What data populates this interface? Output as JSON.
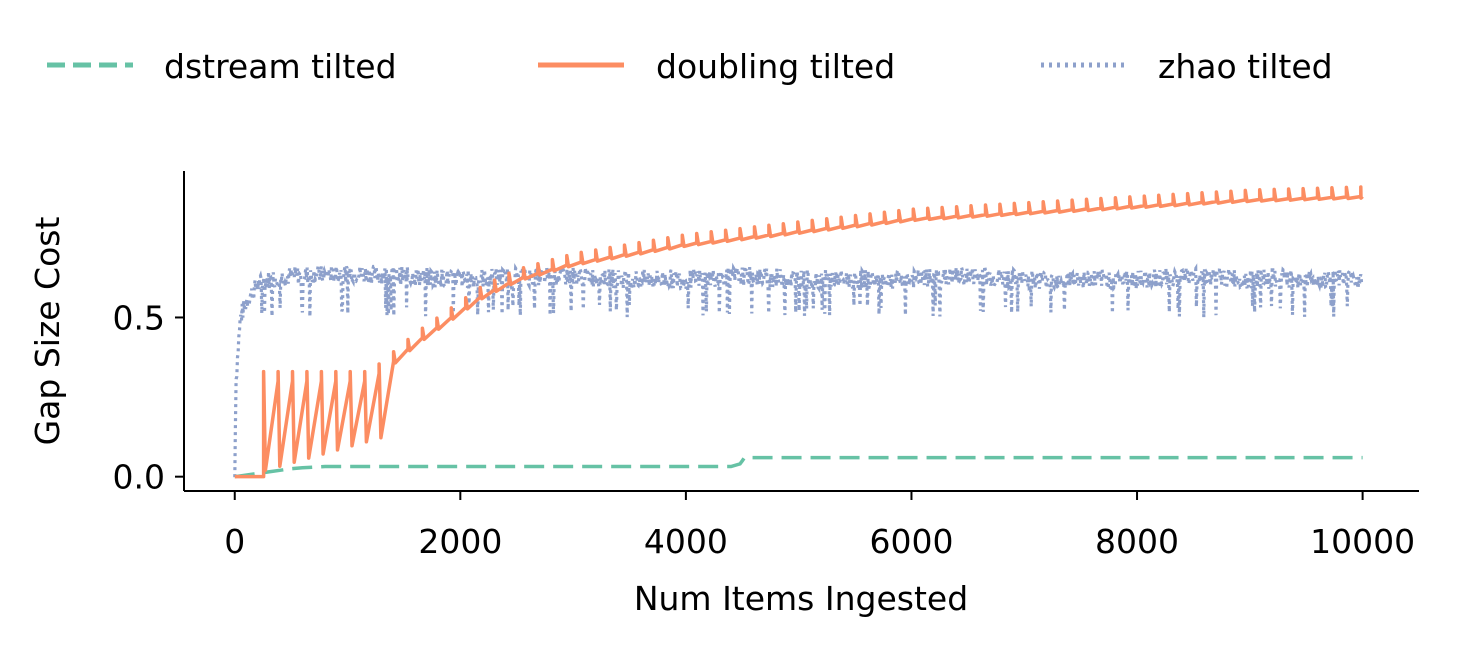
{
  "chart_data": {
    "type": "line",
    "title": "",
    "xlabel": "Num Items Ingested",
    "ylabel": "Gap Size Cost",
    "xlim": [
      -450,
      10500
    ],
    "ylim": [
      -0.045,
      0.96
    ],
    "x_ticks": [
      0,
      2000,
      4000,
      6000,
      8000,
      10000
    ],
    "x_tick_labels": [
      "0",
      "2000",
      "4000",
      "6000",
      "8000",
      "10000"
    ],
    "y_ticks": [
      0.0,
      0.5
    ],
    "y_tick_labels": [
      "0.0",
      "0.5"
    ],
    "grid": false,
    "legend_position": "top",
    "series": [
      {
        "name": "dstream tilted",
        "color": "#66c2a5",
        "style": "dashed",
        "x": [
          0,
          100,
          200,
          300,
          400,
          500,
          600,
          700,
          800,
          1000,
          1500,
          2000,
          2500,
          3000,
          3500,
          4000,
          4300,
          4400,
          4480,
          4500,
          4520,
          5000,
          5500,
          6000,
          7000,
          8000,
          9000,
          10000
        ],
        "y": [
          0.0,
          0.005,
          0.01,
          0.015,
          0.02,
          0.025,
          0.028,
          0.03,
          0.032,
          0.032,
          0.032,
          0.032,
          0.032,
          0.032,
          0.032,
          0.032,
          0.032,
          0.032,
          0.04,
          0.05,
          0.06,
          0.06,
          0.06,
          0.06,
          0.06,
          0.06,
          0.06,
          0.06
        ]
      },
      {
        "name": "doubling tilted",
        "color": "#fc8d62",
        "style": "solid",
        "sawtooth_x": [
          0,
          256,
          384,
          512,
          640,
          768,
          896,
          1024,
          1152,
          1280,
          1408,
          1536,
          1664,
          1792,
          1920,
          2048,
          2176,
          2304,
          2432,
          2560,
          2688,
          2816,
          2944,
          3072,
          3200,
          3328,
          3456,
          3584,
          3712,
          3840,
          3968,
          4096,
          4224,
          4352,
          4480,
          4608,
          4736,
          4864,
          4992,
          5120,
          5248,
          5376,
          5504,
          5632,
          5760,
          5888,
          6016,
          6144,
          6272,
          6400,
          6528,
          6656,
          6784,
          6912,
          7040,
          7168,
          7296,
          7424,
          7552,
          7680,
          7808,
          7936,
          8064,
          8192,
          8320,
          8448,
          8576,
          8704,
          8832,
          8960,
          9088,
          9216,
          9344,
          9472,
          9600,
          9728,
          9856,
          9984
        ],
        "x": [
          0,
          256,
          1000,
          1200,
          1400,
          1600,
          1800,
          2000,
          2200,
          2500,
          2800,
          3000,
          3500,
          4000,
          4500,
          5000,
          5500,
          6000,
          6500,
          7000,
          7500,
          8000,
          8500,
          9000,
          9500,
          10000
        ],
        "y": [
          0.0,
          0.33,
          0.33,
          0.33,
          0.39,
          0.45,
          0.5,
          0.55,
          0.6,
          0.65,
          0.68,
          0.7,
          0.73,
          0.76,
          0.78,
          0.8,
          0.82,
          0.84,
          0.85,
          0.86,
          0.87,
          0.88,
          0.89,
          0.9,
          0.905,
          0.91
        ]
      },
      {
        "name": "zhao tilted",
        "color": "#8da0cb",
        "style": "dotted",
        "x": [
          0,
          10,
          50,
          100,
          200,
          300,
          500,
          1000,
          1500,
          2000,
          2500,
          3000,
          3500,
          4000,
          4500,
          5000,
          5500,
          6000,
          6500,
          7000,
          7500,
          8000,
          8500,
          9000,
          9500,
          10000
        ],
        "y": [
          0.0,
          0.3,
          0.5,
          0.55,
          0.6,
          0.62,
          0.63,
          0.64,
          0.63,
          0.62,
          0.63,
          0.63,
          0.62,
          0.62,
          0.63,
          0.62,
          0.62,
          0.62,
          0.63,
          0.62,
          0.62,
          0.62,
          0.63,
          0.62,
          0.62,
          0.62
        ],
        "dip_min": 0.5,
        "peak_max": 0.66
      }
    ]
  }
}
